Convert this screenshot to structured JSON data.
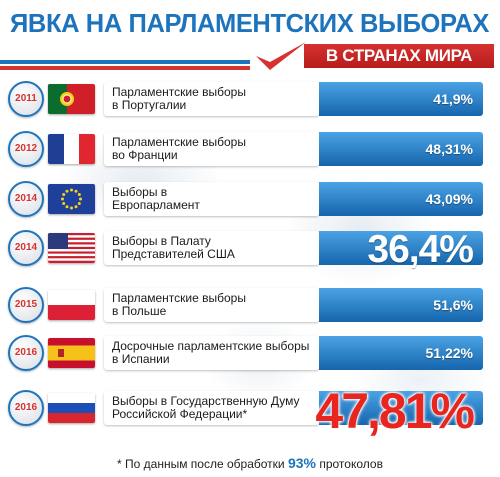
{
  "header": {
    "title": "ЯВКА НА ПАРЛАМЕНТСКИХ ВЫБОРАХ",
    "subtitle": "В СТРАНАХ МИРА"
  },
  "colors": {
    "brand_blue": "#1d74bd",
    "accent_red": "#d6322f",
    "bar_blue": "#1665ad"
  },
  "chart_data": {
    "type": "table",
    "unit": "%",
    "title": "ЯВКА НА ПАРЛАМЕНТСКИХ ВЫБОРАХ",
    "subtitle": "В СТРАНАХ МИРА",
    "rows": [
      {
        "year": "2011",
        "flag": "flag-portugal-icon",
        "label_line1": "Парламентские выборы",
        "label_line2": "в Португалии",
        "value": 41.9,
        "display": "41,9%"
      },
      {
        "year": "2012",
        "flag": "flag-france-icon",
        "label_line1": "Парламентские выборы",
        "label_line2": "во Франции",
        "value": 48.31,
        "display": "48,31%"
      },
      {
        "year": "2014",
        "flag": "flag-eu-icon",
        "label_line1": "Выборы в",
        "label_line2": "Европарламент",
        "value": 43.09,
        "display": "43,09%"
      },
      {
        "year": "2014",
        "flag": "flag-usa-icon",
        "label_line1": "Выборы в Палату",
        "label_line2": "Представителей США",
        "value": 36.4,
        "display": "36,4%"
      },
      {
        "year": "2015",
        "flag": "flag-poland-icon",
        "label_line1": "Парламентские выборы",
        "label_line2": "в Польше",
        "value": 51.6,
        "display": "51,6%"
      },
      {
        "year": "2016",
        "flag": "flag-spain-icon",
        "label_line1": "Досрочные парламентские выборы",
        "label_line2": "в Испании",
        "value": 51.22,
        "display": "51,22%"
      },
      {
        "year": "2016",
        "flag": "flag-russia-icon",
        "label_line1": "Выборы в Государственную Думу",
        "label_line2": "Российской Федерации*",
        "value": 47.81,
        "display": "47,81%"
      }
    ]
  },
  "footnote": {
    "before": "* По данным после обработки",
    "pct": "93%",
    "after": "протоколов"
  }
}
